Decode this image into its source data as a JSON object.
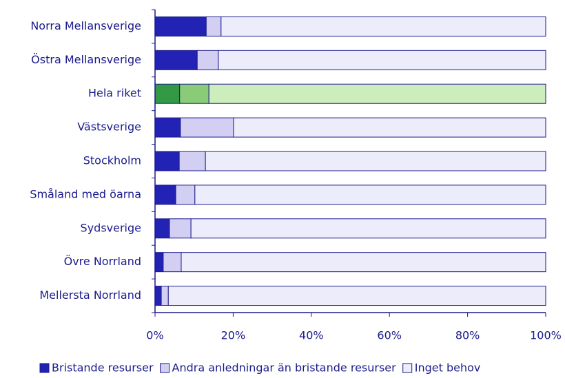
{
  "chart_data": {
    "type": "stacked-barh",
    "categories": [
      "Norra Mellansverige",
      "Östra Mellansverige",
      "Hela riket",
      "Västsverige",
      "Stockholm ",
      "Småland med öarna",
      "Sydsverige",
      "Övre Norrland",
      "Mellersta Norrland"
    ],
    "series": [
      {
        "name": "Bristande resurser",
        "color": "#2222b4",
        "values": [
          13.1,
          10.8,
          6.3,
          6.5,
          6.2,
          5.3,
          3.7,
          2.1,
          1.6
        ]
      },
      {
        "name": "Andra anledningar än bristande resurser",
        "color": "#d2cff2",
        "values": [
          3.8,
          5.4,
          7.5,
          13.6,
          6.7,
          4.9,
          5.5,
          4.6,
          1.8
        ]
      },
      {
        "name": "Inget behov",
        "color": "#edecfa",
        "values": [
          83.1,
          83.8,
          86.2,
          79.9,
          87.1,
          89.8,
          90.8,
          93.3,
          96.6
        ]
      }
    ],
    "highlight": {
      "index": 2,
      "colors": [
        "#339944",
        "#8acb78",
        "#cdeebc"
      ]
    },
    "xlim": [
      0,
      100
    ],
    "xticks": [
      {
        "value": 0,
        "label": "0%"
      },
      {
        "value": 20,
        "label": "20%"
      },
      {
        "value": 40,
        "label": "40%"
      },
      {
        "value": 60,
        "label": "60%"
      },
      {
        "value": 80,
        "label": "80%"
      },
      {
        "value": 100,
        "label": "100%"
      }
    ],
    "legend": "bottom"
  }
}
